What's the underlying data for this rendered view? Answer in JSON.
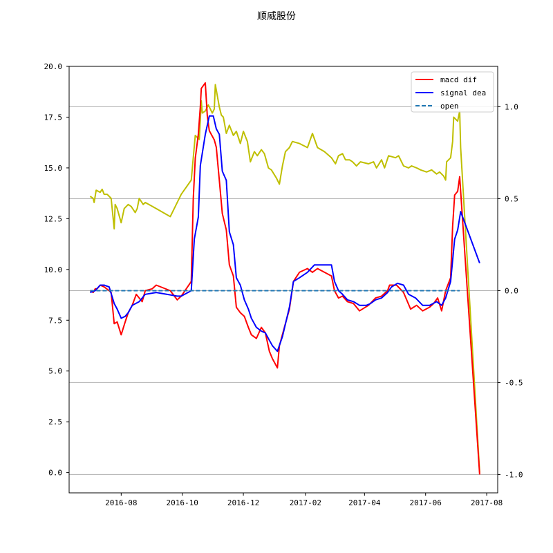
{
  "chart_data": {
    "type": "line",
    "title": "顺威股份",
    "xlabel": "",
    "ylabel": "",
    "x_ticks": [
      "2016-08",
      "2016-10",
      "2016-12",
      "2017-02",
      "2017-04",
      "2017-06",
      "2017-08"
    ],
    "left_axis": {
      "ylim": [
        -1.0,
        20.0
      ],
      "ticks": [
        "0.0",
        "2.5",
        "5.0",
        "7.5",
        "10.0",
        "12.5",
        "15.0",
        "17.5",
        "20.0"
      ]
    },
    "right_axis": {
      "ylim": [
        -1.1,
        1.22
      ],
      "ticks": [
        "-1.0",
        "-0.5",
        "0.0",
        "0.5",
        "1.0"
      ],
      "grid": true
    },
    "xlim": [
      "2016-06-10",
      "2017-08-12"
    ],
    "legend": {
      "placement": "top-right",
      "entries": [
        "macd dif",
        "signal dea",
        "open"
      ]
    },
    "colors": {
      "price": "#bfbf00",
      "dif": "#ff0000",
      "dea": "#0000ff",
      "open": "#1f77b4",
      "grid": "#b0b0b0"
    },
    "series": [
      {
        "name": "",
        "axis": "left",
        "style": "price",
        "points": [
          [
            "2016-07-01",
            13.6
          ],
          [
            "2016-07-04",
            13.5
          ],
          [
            "2016-07-05",
            13.3
          ],
          [
            "2016-07-07",
            13.9
          ],
          [
            "2016-07-11",
            13.8
          ],
          [
            "2016-07-13",
            13.95
          ],
          [
            "2016-07-15",
            13.7
          ],
          [
            "2016-07-18",
            13.7
          ],
          [
            "2016-07-20",
            13.6
          ],
          [
            "2016-07-22",
            13.5
          ],
          [
            "2016-07-25",
            12.0
          ],
          [
            "2016-07-26",
            13.2
          ],
          [
            "2016-07-28",
            13.0
          ],
          [
            "2016-08-01",
            12.3
          ],
          [
            "2016-08-04",
            13.0
          ],
          [
            "2016-08-08",
            13.2
          ],
          [
            "2016-08-11",
            13.1
          ],
          [
            "2016-08-15",
            12.8
          ],
          [
            "2016-08-17",
            13.0
          ],
          [
            "2016-08-19",
            13.5
          ],
          [
            "2016-08-23",
            13.2
          ],
          [
            "2016-08-25",
            13.3
          ],
          [
            "2016-09-05",
            13.0
          ],
          [
            "2016-09-19",
            12.6
          ],
          [
            "2016-09-30",
            13.7
          ],
          [
            "2016-10-10",
            14.4
          ],
          [
            "2016-10-14",
            16.6
          ],
          [
            "2016-10-18",
            16.4
          ],
          [
            "2016-10-20",
            18.3
          ],
          [
            "2016-10-21",
            17.7
          ],
          [
            "2016-10-24",
            17.8
          ],
          [
            "2016-10-27",
            18.1
          ],
          [
            "2016-10-31",
            17.7
          ],
          [
            "2016-11-02",
            17.9
          ],
          [
            "2016-11-03",
            19.1
          ],
          [
            "2016-11-07",
            18.0
          ],
          [
            "2016-11-09",
            17.6
          ],
          [
            "2016-11-11",
            17.5
          ],
          [
            "2016-11-14",
            16.7
          ],
          [
            "2016-11-17",
            17.1
          ],
          [
            "2016-11-21",
            16.6
          ],
          [
            "2016-11-24",
            16.8
          ],
          [
            "2016-11-28",
            16.2
          ],
          [
            "2016-12-01",
            16.8
          ],
          [
            "2016-12-05",
            16.3
          ],
          [
            "2016-12-08",
            15.3
          ],
          [
            "2016-12-12",
            15.8
          ],
          [
            "2016-12-15",
            15.6
          ],
          [
            "2016-12-19",
            15.9
          ],
          [
            "2016-12-22",
            15.7
          ],
          [
            "2016-12-26",
            15.0
          ],
          [
            "2016-12-29",
            14.9
          ],
          [
            "2017-01-03",
            14.5
          ],
          [
            "2017-01-06",
            14.2
          ],
          [
            "2017-01-09",
            15.1
          ],
          [
            "2017-01-12",
            15.8
          ],
          [
            "2017-01-16",
            16.0
          ],
          [
            "2017-01-19",
            16.3
          ],
          [
            "2017-01-26",
            16.2
          ],
          [
            "2017-02-03",
            16.0
          ],
          [
            "2017-02-08",
            16.7
          ],
          [
            "2017-02-13",
            16.0
          ],
          [
            "2017-02-20",
            15.8
          ],
          [
            "2017-02-27",
            15.5
          ],
          [
            "2017-03-03",
            15.2
          ],
          [
            "2017-03-06",
            15.6
          ],
          [
            "2017-03-10",
            15.7
          ],
          [
            "2017-03-13",
            15.4
          ],
          [
            "2017-03-17",
            15.4
          ],
          [
            "2017-03-20",
            15.3
          ],
          [
            "2017-03-24",
            15.1
          ],
          [
            "2017-03-28",
            15.3
          ],
          [
            "2017-04-05",
            15.2
          ],
          [
            "2017-04-10",
            15.3
          ],
          [
            "2017-04-13",
            15.0
          ],
          [
            "2017-04-18",
            15.4
          ],
          [
            "2017-04-21",
            15.0
          ],
          [
            "2017-04-25",
            15.6
          ],
          [
            "2017-05-02",
            15.5
          ],
          [
            "2017-05-05",
            15.6
          ],
          [
            "2017-05-10",
            15.1
          ],
          [
            "2017-05-15",
            15.0
          ],
          [
            "2017-05-18",
            15.1
          ],
          [
            "2017-05-23",
            15.0
          ],
          [
            "2017-05-27",
            14.9
          ],
          [
            "2017-06-02",
            14.8
          ],
          [
            "2017-06-07",
            14.9
          ],
          [
            "2017-06-12",
            14.7
          ],
          [
            "2017-06-15",
            14.8
          ],
          [
            "2017-06-19",
            14.6
          ],
          [
            "2017-06-21",
            14.4
          ],
          [
            "2017-06-22",
            15.3
          ],
          [
            "2017-06-26",
            15.5
          ],
          [
            "2017-06-28",
            16.3
          ],
          [
            "2017-06-29",
            17.5
          ],
          [
            "2017-07-03",
            17.3
          ],
          [
            "2017-07-05",
            17.8
          ],
          [
            "2017-07-06",
            16.0
          ],
          [
            "2017-07-25",
            0.0
          ]
        ]
      },
      {
        "name": "macd dif",
        "axis": "right",
        "style": "dif",
        "points": [
          [
            "2016-07-01",
            0.0
          ],
          [
            "2016-07-04",
            -0.01
          ],
          [
            "2016-07-06",
            0.01
          ],
          [
            "2016-07-08",
            0.01
          ],
          [
            "2016-07-11",
            0.03
          ],
          [
            "2016-07-15",
            0.02
          ],
          [
            "2016-07-20",
            0.0
          ],
          [
            "2016-07-22",
            -0.01
          ],
          [
            "2016-07-25",
            -0.18
          ],
          [
            "2016-07-28",
            -0.17
          ],
          [
            "2016-08-01",
            -0.24
          ],
          [
            "2016-08-05",
            -0.17
          ],
          [
            "2016-08-08",
            -0.12
          ],
          [
            "2016-08-12",
            -0.08
          ],
          [
            "2016-08-16",
            -0.02
          ],
          [
            "2016-08-19",
            -0.04
          ],
          [
            "2016-08-22",
            -0.06
          ],
          [
            "2016-08-25",
            0.0
          ],
          [
            "2016-09-01",
            0.01
          ],
          [
            "2016-09-05",
            0.03
          ],
          [
            "2016-09-19",
            0.0
          ],
          [
            "2016-09-26",
            -0.05
          ],
          [
            "2016-09-30",
            -0.03
          ],
          [
            "2016-10-10",
            0.05
          ],
          [
            "2016-10-12",
            0.5
          ],
          [
            "2016-10-14",
            0.72
          ],
          [
            "2016-10-17",
            0.85
          ],
          [
            "2016-10-19",
            1.0
          ],
          [
            "2016-10-20",
            1.1
          ],
          [
            "2016-10-24",
            1.13
          ],
          [
            "2016-10-26",
            0.95
          ],
          [
            "2016-10-28",
            0.87
          ],
          [
            "2016-11-02",
            0.82
          ],
          [
            "2016-11-04",
            0.78
          ],
          [
            "2016-11-07",
            0.6
          ],
          [
            "2016-11-10",
            0.42
          ],
          [
            "2016-11-14",
            0.33
          ],
          [
            "2016-11-17",
            0.14
          ],
          [
            "2016-11-21",
            0.08
          ],
          [
            "2016-11-24",
            -0.09
          ],
          [
            "2016-11-28",
            -0.12
          ],
          [
            "2016-12-02",
            -0.14
          ],
          [
            "2016-12-06",
            -0.2
          ],
          [
            "2016-12-09",
            -0.24
          ],
          [
            "2016-12-14",
            -0.26
          ],
          [
            "2016-12-19",
            -0.2
          ],
          [
            "2016-12-23",
            -0.23
          ],
          [
            "2016-12-27",
            -0.33
          ],
          [
            "2016-12-30",
            -0.37
          ],
          [
            "2017-01-04",
            -0.42
          ],
          [
            "2017-01-06",
            -0.3
          ],
          [
            "2017-01-11",
            -0.2
          ],
          [
            "2017-01-16",
            -0.1
          ],
          [
            "2017-01-20",
            0.05
          ],
          [
            "2017-01-26",
            0.1
          ],
          [
            "2017-02-03",
            0.12
          ],
          [
            "2017-02-08",
            0.1
          ],
          [
            "2017-02-13",
            0.12
          ],
          [
            "2017-02-20",
            0.1
          ],
          [
            "2017-02-27",
            0.08
          ],
          [
            "2017-03-02",
            0.0
          ],
          [
            "2017-03-06",
            -0.04
          ],
          [
            "2017-03-10",
            -0.03
          ],
          [
            "2017-03-15",
            -0.06
          ],
          [
            "2017-03-21",
            -0.07
          ],
          [
            "2017-03-27",
            -0.11
          ],
          [
            "2017-04-05",
            -0.08
          ],
          [
            "2017-04-12",
            -0.04
          ],
          [
            "2017-04-18",
            -0.03
          ],
          [
            "2017-04-24",
            0.0
          ],
          [
            "2017-04-26",
            0.03
          ],
          [
            "2017-05-03",
            0.03
          ],
          [
            "2017-05-10",
            -0.01
          ],
          [
            "2017-05-17",
            -0.1
          ],
          [
            "2017-05-23",
            -0.08
          ],
          [
            "2017-05-29",
            -0.11
          ],
          [
            "2017-06-05",
            -0.09
          ],
          [
            "2017-06-09",
            -0.07
          ],
          [
            "2017-06-13",
            -0.04
          ],
          [
            "2017-06-17",
            -0.11
          ],
          [
            "2017-06-21",
            0.0
          ],
          [
            "2017-06-26",
            0.07
          ],
          [
            "2017-06-28",
            0.35
          ],
          [
            "2017-06-30",
            0.52
          ],
          [
            "2017-07-03",
            0.54
          ],
          [
            "2017-07-05",
            0.62
          ],
          [
            "2017-07-25",
            -1.0
          ]
        ]
      },
      {
        "name": "signal dea",
        "axis": "right",
        "style": "dea",
        "points": [
          [
            "2016-07-01",
            -0.01
          ],
          [
            "2016-07-06",
            0.0
          ],
          [
            "2016-07-11",
            0.03
          ],
          [
            "2016-07-15",
            0.03
          ],
          [
            "2016-07-20",
            0.02
          ],
          [
            "2016-07-25",
            -0.07
          ],
          [
            "2016-07-28",
            -0.1
          ],
          [
            "2016-08-01",
            -0.15
          ],
          [
            "2016-08-05",
            -0.14
          ],
          [
            "2016-08-08",
            -0.12
          ],
          [
            "2016-08-12",
            -0.08
          ],
          [
            "2016-08-19",
            -0.06
          ],
          [
            "2016-08-25",
            -0.02
          ],
          [
            "2016-09-05",
            -0.01
          ],
          [
            "2016-09-26",
            -0.03
          ],
          [
            "2016-09-30",
            -0.03
          ],
          [
            "2016-10-10",
            0.0
          ],
          [
            "2016-10-13",
            0.28
          ],
          [
            "2016-10-17",
            0.4
          ],
          [
            "2016-10-19",
            0.68
          ],
          [
            "2016-10-24",
            0.85
          ],
          [
            "2016-10-28",
            0.95
          ],
          [
            "2016-11-01",
            0.95
          ],
          [
            "2016-11-04",
            0.88
          ],
          [
            "2016-11-07",
            0.85
          ],
          [
            "2016-11-10",
            0.65
          ],
          [
            "2016-11-14",
            0.6
          ],
          [
            "2016-11-17",
            0.32
          ],
          [
            "2016-11-21",
            0.25
          ],
          [
            "2016-11-24",
            0.07
          ],
          [
            "2016-11-28",
            0.03
          ],
          [
            "2016-12-02",
            -0.05
          ],
          [
            "2016-12-06",
            -0.1
          ],
          [
            "2016-12-09",
            -0.15
          ],
          [
            "2016-12-14",
            -0.2
          ],
          [
            "2016-12-19",
            -0.22
          ],
          [
            "2016-12-23",
            -0.23
          ],
          [
            "2016-12-27",
            -0.27
          ],
          [
            "2016-12-30",
            -0.3
          ],
          [
            "2017-01-04",
            -0.33
          ],
          [
            "2017-01-09",
            -0.25
          ],
          [
            "2017-01-16",
            -0.09
          ],
          [
            "2017-01-20",
            0.05
          ],
          [
            "2017-01-26",
            0.07
          ],
          [
            "2017-02-03",
            0.1
          ],
          [
            "2017-02-10",
            0.14
          ],
          [
            "2017-02-15",
            0.14
          ],
          [
            "2017-02-20",
            0.14
          ],
          [
            "2017-02-27",
            0.14
          ],
          [
            "2017-03-02",
            0.05
          ],
          [
            "2017-03-06",
            0.0
          ],
          [
            "2017-03-10",
            -0.02
          ],
          [
            "2017-03-15",
            -0.05
          ],
          [
            "2017-03-21",
            -0.06
          ],
          [
            "2017-03-27",
            -0.08
          ],
          [
            "2017-04-03",
            -0.08
          ],
          [
            "2017-04-07",
            -0.07
          ],
          [
            "2017-04-12",
            -0.05
          ],
          [
            "2017-04-18",
            -0.04
          ],
          [
            "2017-04-24",
            -0.01
          ],
          [
            "2017-04-28",
            0.02
          ],
          [
            "2017-05-04",
            0.04
          ],
          [
            "2017-05-10",
            0.03
          ],
          [
            "2017-05-15",
            -0.02
          ],
          [
            "2017-05-22",
            -0.04
          ],
          [
            "2017-05-29",
            -0.08
          ],
          [
            "2017-06-05",
            -0.08
          ],
          [
            "2017-06-12",
            -0.06
          ],
          [
            "2017-06-17",
            -0.08
          ],
          [
            "2017-06-21",
            -0.04
          ],
          [
            "2017-06-26",
            0.05
          ],
          [
            "2017-06-30",
            0.28
          ],
          [
            "2017-07-03",
            0.33
          ],
          [
            "2017-07-06",
            0.43
          ],
          [
            "2017-07-25",
            0.15
          ]
        ]
      },
      {
        "name": "open",
        "axis": "right",
        "style": "open",
        "dashed": true,
        "points": [
          [
            "2016-07-01",
            0.0
          ],
          [
            "2017-07-05",
            0.0
          ]
        ]
      }
    ]
  }
}
